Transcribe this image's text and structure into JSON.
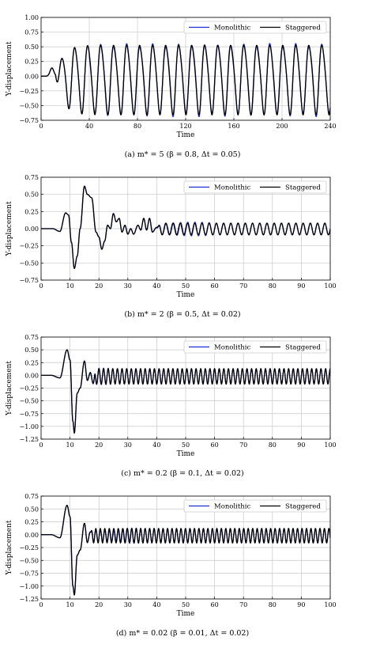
{
  "legend_labels": [
    "Monolithic",
    "Staggered"
  ],
  "colors": {
    "monolithic": "#1f2fd6",
    "staggered": "#000000",
    "grid": "#c8c8c8"
  },
  "chart_data": [
    {
      "type": "line",
      "caption": "(a) m* = 5 (β = 0.8, Δt = 0.05)",
      "xlabel": "Time",
      "ylabel": "Y-displacement",
      "xlim": [
        0,
        240
      ],
      "ylim": [
        -0.75,
        1.0
      ],
      "xticks": [
        0,
        40,
        80,
        120,
        160,
        200,
        240
      ],
      "yticks": [
        -0.75,
        -0.5,
        -0.25,
        0.0,
        0.25,
        0.5,
        0.75,
        1.0
      ],
      "grid": true,
      "legend_position": "top-right",
      "series": [
        {
          "name": "Monolithic",
          "color": "#1f2fd6"
        },
        {
          "name": "Staggered",
          "color": "#000000"
        }
      ],
      "signal": {
        "onset": 12,
        "envelope_tau": 6,
        "period": 10.8,
        "amplitude": 0.58,
        "offset": -0.03,
        "pre_bump_time": 9,
        "pre_bump_amp": 0.14,
        "pre_bump_width": 2.2,
        "harmonic": 0.12,
        "phase_drift": 0.05
      }
    },
    {
      "type": "line",
      "caption": "(b) m* = 2 (β = 0.5, Δt = 0.02)",
      "xlabel": "Time",
      "ylabel": "Y-displacement",
      "xlim": [
        0,
        100
      ],
      "ylim": [
        -0.75,
        0.75
      ],
      "xticks": [
        0,
        10,
        20,
        30,
        40,
        50,
        60,
        70,
        80,
        90,
        100
      ],
      "yticks": [
        -0.75,
        -0.5,
        -0.25,
        0.0,
        0.25,
        0.5,
        0.75
      ],
      "grid": true,
      "legend_position": "top-right",
      "series": [
        {
          "name": "Monolithic",
          "color": "#1f2fd6"
        },
        {
          "name": "Staggered",
          "color": "#000000"
        }
      ],
      "keypoints": [
        [
          0,
          0
        ],
        [
          4,
          0
        ],
        [
          6.5,
          -0.04
        ],
        [
          8.5,
          0.23
        ],
        [
          9.5,
          0.2
        ],
        [
          10.5,
          -0.2
        ],
        [
          11.5,
          -0.58
        ],
        [
          12.5,
          -0.4
        ],
        [
          13.5,
          0.0
        ],
        [
          15.0,
          0.62
        ],
        [
          16.0,
          0.5
        ],
        [
          17.5,
          0.45
        ],
        [
          19.0,
          -0.05
        ],
        [
          20.0,
          -0.12
        ],
        [
          21.0,
          -0.3
        ],
        [
          22.0,
          -0.18
        ],
        [
          23.0,
          0.05
        ],
        [
          24.0,
          0.0
        ],
        [
          25.0,
          0.22
        ],
        [
          26.0,
          0.1
        ],
        [
          27.0,
          0.15
        ],
        [
          28.0,
          -0.05
        ],
        [
          29.0,
          0.05
        ],
        [
          30.0,
          -0.08
        ],
        [
          31.0,
          0.0
        ],
        [
          32.0,
          -0.08
        ],
        [
          33.5,
          0.05
        ],
        [
          34.5,
          -0.02
        ],
        [
          35.5,
          0.15
        ],
        [
          36.5,
          -0.02
        ],
        [
          37.5,
          0.15
        ],
        [
          38.5,
          -0.05
        ],
        [
          40.0,
          0.02
        ]
      ],
      "steady": {
        "start": 40,
        "period": 2.5,
        "amplitude": 0.085,
        "offset": -0.005,
        "phase": 0.0
      },
      "mono_dev": {
        "start": 38,
        "end": 60,
        "amp": 0.03
      }
    },
    {
      "type": "line",
      "caption": "(c) m* = 0.2 (β = 0.1, Δt = 0.02)",
      "xlabel": "Time",
      "ylabel": "Y-displacement",
      "xlim": [
        0,
        100
      ],
      "ylim": [
        -1.25,
        0.75
      ],
      "xticks": [
        0,
        10,
        20,
        30,
        40,
        50,
        60,
        70,
        80,
        90,
        100
      ],
      "yticks": [
        -1.25,
        -1.0,
        -0.75,
        -0.5,
        -0.25,
        0.0,
        0.25,
        0.5,
        0.75
      ],
      "grid": true,
      "legend_position": "top-right",
      "series": [
        {
          "name": "Monolithic",
          "color": "#1f2fd6"
        },
        {
          "name": "Staggered",
          "color": "#000000"
        }
      ],
      "keypoints": [
        [
          0,
          0
        ],
        [
          3.5,
          0
        ],
        [
          6.5,
          -0.05
        ],
        [
          9.0,
          0.5
        ],
        [
          10.0,
          0.3
        ],
        [
          11.0,
          -0.9
        ],
        [
          11.5,
          -1.13
        ],
        [
          12.5,
          -0.35
        ],
        [
          13.5,
          -0.25
        ],
        [
          15.0,
          0.28
        ],
        [
          16.0,
          -0.1
        ],
        [
          17.0,
          0.05
        ],
        [
          18.0,
          -0.15
        ]
      ],
      "steady": {
        "start": 18,
        "period": 1.6,
        "amplitude": 0.15,
        "offset": -0.02,
        "phase": 0.0
      },
      "mono_dev": {
        "start": 15,
        "end": 25,
        "amp": 0.02
      }
    },
    {
      "type": "line",
      "caption": "(d) m* = 0.02 (β = 0.01, Δt = 0.02)",
      "xlabel": "Time",
      "ylabel": "Y-displacement",
      "xlim": [
        0,
        100
      ],
      "ylim": [
        -1.25,
        0.75
      ],
      "xticks": [
        0,
        10,
        20,
        30,
        40,
        50,
        60,
        70,
        80,
        90,
        100
      ],
      "yticks": [
        -1.25,
        -1.0,
        -0.75,
        -0.5,
        -0.25,
        0.0,
        0.25,
        0.5,
        0.75
      ],
      "grid": true,
      "legend_position": "top-right",
      "series": [
        {
          "name": "Monolithic",
          "color": "#1f2fd6"
        },
        {
          "name": "Staggered",
          "color": "#000000"
        }
      ],
      "keypoints": [
        [
          0,
          0
        ],
        [
          3.5,
          0
        ],
        [
          6.5,
          -0.06
        ],
        [
          9.0,
          0.57
        ],
        [
          10.0,
          0.35
        ],
        [
          11.0,
          -1.0
        ],
        [
          11.5,
          -1.17
        ],
        [
          12.5,
          -0.4
        ],
        [
          13.5,
          -0.3
        ],
        [
          15.0,
          0.22
        ],
        [
          16.0,
          -0.15
        ],
        [
          17.0,
          0.05
        ]
      ],
      "steady": {
        "start": 17,
        "period": 1.55,
        "amplitude": 0.14,
        "offset": -0.02,
        "phase": 0.0
      },
      "mono_dev": {
        "start": 15,
        "end": 35,
        "amp": 0.05
      }
    }
  ]
}
